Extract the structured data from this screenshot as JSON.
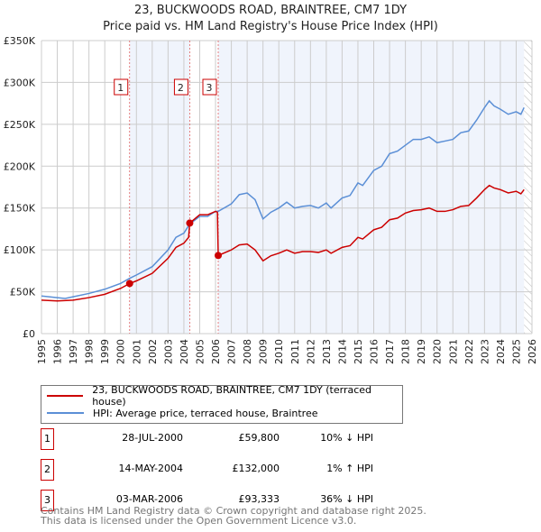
{
  "chart_data": {
    "type": "line",
    "title": "23, BUCKWOODS ROAD, BRAINTREE, CM7 1DY",
    "subtitle": "Price paid vs. HM Land Registry's House Price Index (HPI)",
    "xlim": [
      1995,
      2026
    ],
    "ylim": [
      0,
      350000
    ],
    "yticks": [
      {
        "v": 0,
        "label": "£0"
      },
      {
        "v": 50000,
        "label": "£50K"
      },
      {
        "v": 100000,
        "label": "£100K"
      },
      {
        "v": 150000,
        "label": "£150K"
      },
      {
        "v": 200000,
        "label": "£200K"
      },
      {
        "v": 250000,
        "label": "£250K"
      },
      {
        "v": 300000,
        "label": "£300K"
      },
      {
        "v": 350000,
        "label": "£350K"
      }
    ],
    "xticks": [
      "1995",
      "1996",
      "1997",
      "1998",
      "1999",
      "2000",
      "2001",
      "2002",
      "2003",
      "2004",
      "2005",
      "2006",
      "2007",
      "2008",
      "2009",
      "2010",
      "2011",
      "2012",
      "2013",
      "2014",
      "2015",
      "2016",
      "2017",
      "2018",
      "2019",
      "2020",
      "2021",
      "2022",
      "2023",
      "2024",
      "2025",
      "2026"
    ],
    "series": [
      {
        "name": "23, BUCKWOODS ROAD, BRAINTREE, CM7 1DY (terraced house)",
        "color": "#cc0000",
        "x": [
          1995,
          1996,
          1997,
          1998,
          1999,
          2000,
          2000.57,
          2001,
          2002,
          2003,
          2003.5,
          2004,
          2004.3,
          2004.37,
          2005,
          2005.5,
          2006,
          2006.12,
          2006.17,
          2007,
          2007.5,
          2008,
          2008.5,
          2009,
          2009.5,
          2010,
          2010.5,
          2011,
          2011.5,
          2012,
          2012.5,
          2013,
          2013.3,
          2014,
          2014.5,
          2015,
          2015.3,
          2016,
          2016.5,
          2017,
          2017.5,
          2018,
          2018.5,
          2019,
          2019.5,
          2020,
          2020.5,
          2021,
          2021.5,
          2022,
          2022.5,
          2023,
          2023.3,
          2023.6,
          2024,
          2024.5,
          2025,
          2025.3,
          2025.5
        ],
        "y": [
          40000,
          39000,
          40000,
          43000,
          47000,
          54000,
          59800,
          63000,
          72000,
          90000,
          103000,
          108000,
          115000,
          132000,
          142000,
          142000,
          146000,
          145000,
          93333,
          100000,
          106000,
          107000,
          100000,
          87000,
          93000,
          96000,
          100000,
          96000,
          98000,
          98000,
          97000,
          100000,
          96000,
          103000,
          105000,
          115000,
          113000,
          124000,
          127000,
          136000,
          138000,
          144000,
          147000,
          148000,
          150000,
          146000,
          146000,
          148000,
          152000,
          153000,
          162000,
          172000,
          177000,
          174000,
          172000,
          168000,
          170000,
          167000,
          172000
        ]
      },
      {
        "name": "HPI: Average price, terraced house, Braintree",
        "color": "#5b8fd6",
        "x": [
          1995,
          1996,
          1996.5,
          1997,
          1998,
          1999,
          2000,
          2000.57,
          2001,
          2002,
          2003,
          2003.5,
          2004,
          2004.37,
          2005,
          2005.5,
          2006,
          2006.17,
          2007,
          2007.5,
          2008,
          2008.5,
          2009,
          2009.5,
          2010,
          2010.5,
          2011,
          2011.5,
          2012,
          2012.5,
          2013,
          2013.3,
          2014,
          2014.5,
          2015,
          2015.3,
          2016,
          2016.5,
          2017,
          2017.5,
          2018,
          2018.5,
          2019,
          2019.5,
          2020,
          2020.5,
          2021,
          2021.5,
          2022,
          2022.5,
          2023,
          2023.3,
          2023.6,
          2024,
          2024.5,
          2025,
          2025.3,
          2025.5
        ],
        "y": [
          45000,
          43000,
          42000,
          44000,
          48000,
          53000,
          60000,
          66000,
          70000,
          80000,
          100000,
          115000,
          120000,
          131000,
          140000,
          140000,
          146000,
          146000,
          155000,
          166000,
          168000,
          160000,
          137000,
          145000,
          150000,
          157000,
          150000,
          152000,
          153000,
          150000,
          156000,
          150000,
          162000,
          165000,
          180000,
          177000,
          195000,
          200000,
          215000,
          218000,
          225000,
          232000,
          232000,
          235000,
          228000,
          230000,
          232000,
          240000,
          242000,
          255000,
          270000,
          278000,
          272000,
          268000,
          262000,
          265000,
          262000,
          270000
        ]
      }
    ],
    "sales": [
      {
        "id": "1",
        "x": 2000.57,
        "y": 59800,
        "date": "28-JUL-2000",
        "price": "£59,800",
        "hpi": "10% ↓ HPI"
      },
      {
        "id": "2",
        "x": 2004.37,
        "y": 132000,
        "date": "14-MAY-2004",
        "price": "£132,000",
        "hpi": "1% ↑ HPI"
      },
      {
        "id": "3",
        "x": 2006.17,
        "y": 93333,
        "date": "03-MAR-2006",
        "price": "£93,333",
        "hpi": "36% ↓ HPI"
      }
    ],
    "forecast_start": 2025.5,
    "legend_placement": "bottom"
  },
  "footer": {
    "line1": "Contains HM Land Registry data © Crown copyright and database right 2025.",
    "line2": "This data is licensed under the Open Government Licence v3.0."
  }
}
